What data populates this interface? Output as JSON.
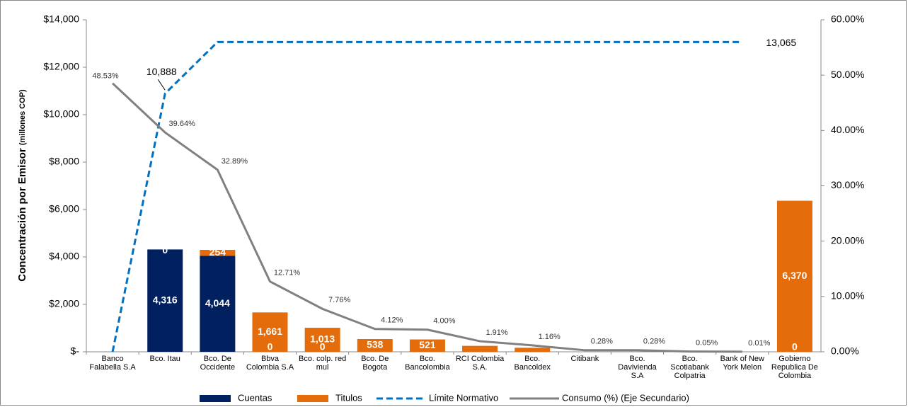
{
  "chart_data": {
    "type": "bar",
    "stacked": true,
    "y_label": "Concentración por Emisor",
    "y_label_unit": "(millones COP)",
    "categories": [
      "Banco Falabella S.A",
      "Bco. Itau",
      "Bco. De Occidente",
      "Bbva Colombia S.A",
      "Bco. colp. red mul",
      "Bco. De Bogota",
      "Bco. Bancolombia",
      "RCI Colombia S.A.",
      "Bco. Bancoldex",
      "Citibank",
      "Bco. Davivienda S.A",
      "Bco. Scotiabank Colpatria",
      "Bank of New York Melon",
      "Gobierno Republica De Colombia"
    ],
    "series": [
      {
        "name": "Cuentas",
        "type": "bar",
        "color": "#002060",
        "values": [
          0,
          4316,
          4044,
          0,
          0,
          0,
          0,
          0,
          0,
          0,
          0,
          0,
          0,
          0
        ],
        "value_labels": [
          null,
          "4,316",
          "4,044",
          "0",
          "0",
          null,
          null,
          null,
          null,
          null,
          null,
          null,
          null,
          "0"
        ]
      },
      {
        "name": "Titulos",
        "type": "bar",
        "color": "#e46c0a",
        "values": [
          0,
          0,
          254,
          1661,
          1013,
          538,
          521,
          250,
          170,
          0,
          0,
          0,
          0,
          6370
        ],
        "value_labels": [
          null,
          "0",
          "254",
          "1,661",
          "1,013",
          "538",
          "521",
          null,
          null,
          null,
          null,
          null,
          null,
          "6,370"
        ]
      },
      {
        "name": "Límite Normativo",
        "type": "line",
        "dashed": true,
        "color": "#0070c0",
        "values": [
          0,
          10888,
          13065,
          13065,
          13065,
          13065,
          13065,
          13065,
          13065,
          13065,
          13065,
          13065,
          13065,
          null
        ],
        "value_labels": [
          null,
          "10,888",
          null,
          null,
          null,
          null,
          null,
          null,
          null,
          null,
          null,
          null,
          "13,065",
          null
        ]
      },
      {
        "name": "Consumo (%) (Eje Secundario)",
        "type": "line",
        "axis": "y2",
        "color": "#808080",
        "values": [
          48.53,
          39.64,
          32.89,
          12.71,
          7.76,
          4.12,
          4.0,
          1.91,
          1.16,
          0.28,
          0.28,
          0.05,
          0.01,
          null
        ],
        "value_labels": [
          "48.53%",
          "39.64%",
          "32.89%",
          "12.71%",
          "7.76%",
          "4.12%",
          "4.00%",
          "1.91%",
          "1.16%",
          "0.28%",
          "0.28%",
          "0.05%",
          "0.01%",
          null
        ]
      }
    ],
    "ylim": [
      0,
      14000
    ],
    "yticks": [
      {
        "value": 0,
        "label": "$-"
      },
      {
        "value": 2000,
        "label": "$2,000"
      },
      {
        "value": 4000,
        "label": "$4,000"
      },
      {
        "value": 6000,
        "label": "$6,000"
      },
      {
        "value": 8000,
        "label": "$8,000"
      },
      {
        "value": 10000,
        "label": "$10,000"
      },
      {
        "value": 12000,
        "label": "$12,000"
      },
      {
        "value": 14000,
        "label": "$14,000"
      }
    ],
    "y2lim": [
      0,
      60
    ],
    "y2ticks": [
      {
        "value": 0,
        "label": "0.00%"
      },
      {
        "value": 10,
        "label": "10.00%"
      },
      {
        "value": 20,
        "label": "20.00%"
      },
      {
        "value": 30,
        "label": "30.00%"
      },
      {
        "value": 40,
        "label": "40.00%"
      },
      {
        "value": 50,
        "label": "50.00%"
      },
      {
        "value": 60,
        "label": "60.00%"
      }
    ],
    "grid": false,
    "legend": "bottom"
  }
}
